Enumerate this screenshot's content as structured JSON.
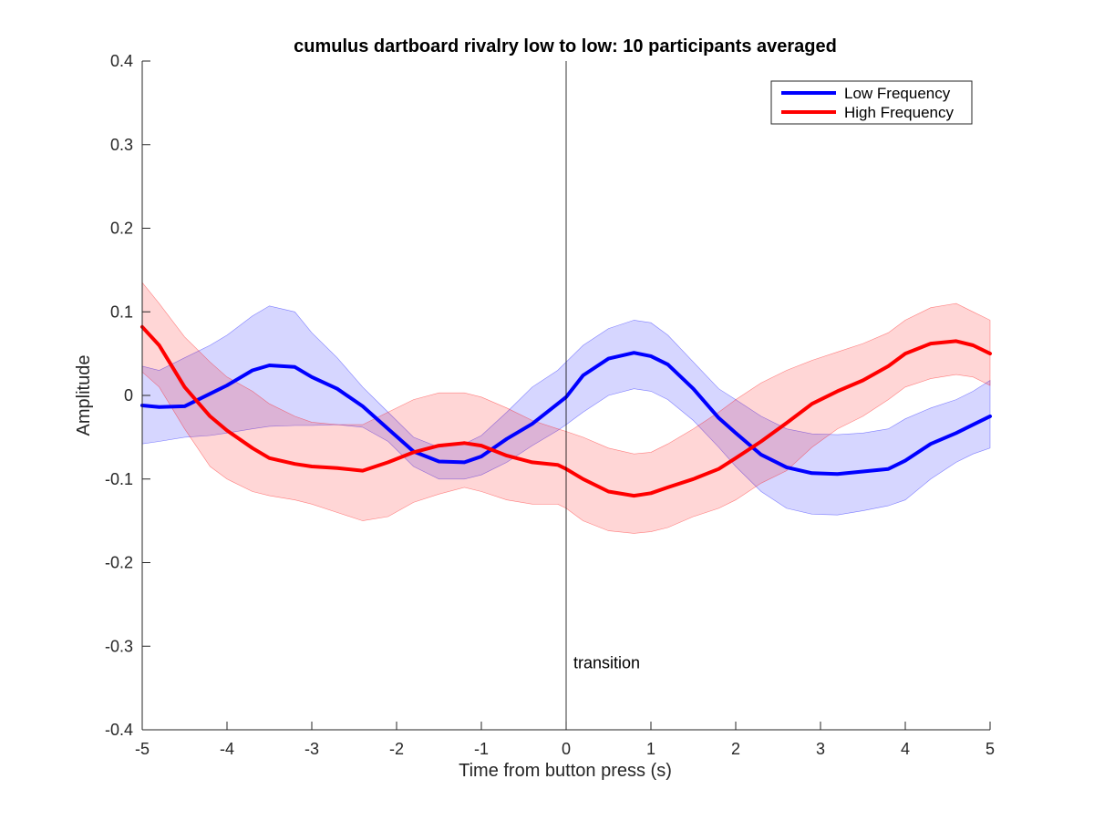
{
  "chart_data": {
    "type": "line",
    "title": "cumulus dartboard rivalry low to low: 10 participants averaged",
    "xlabel": "Time from button press (s)",
    "ylabel": "Amplitude",
    "xlim": [
      -5,
      5
    ],
    "ylim": [
      -0.4,
      0.4
    ],
    "xticks": [
      -5,
      -4,
      -3,
      -2,
      -1,
      0,
      1,
      2,
      3,
      4,
      5
    ],
    "yticks": [
      -0.4,
      -0.3,
      -0.2,
      -0.1,
      0,
      0.1,
      0.2,
      0.3,
      0.4
    ],
    "xtick_labels": [
      "-5",
      "-4",
      "-3",
      "-2",
      "-1",
      "0",
      "1",
      "2",
      "3",
      "4",
      "5"
    ],
    "ytick_labels": [
      "-0.4",
      "-0.3",
      "-0.2",
      "-0.1",
      "0",
      "0.1",
      "0.2",
      "0.3",
      "0.4"
    ],
    "grid": false,
    "legend_position": "top-right",
    "annotation": {
      "text": "transition",
      "x": 0,
      "y": -0.32
    },
    "vertical_line_x": 0,
    "series": [
      {
        "name": "Low Frequency",
        "color": "#0000ff",
        "x": [
          -5,
          -4.8,
          -4.5,
          -4.2,
          -4,
          -3.7,
          -3.5,
          -3.2,
          -3,
          -2.7,
          -2.4,
          -2.1,
          -1.8,
          -1.5,
          -1.2,
          -1,
          -0.7,
          -0.4,
          -0.1,
          0,
          0.2,
          0.5,
          0.8,
          1,
          1.2,
          1.5,
          1.8,
          2,
          2.3,
          2.6,
          2.9,
          3.2,
          3.5,
          3.8,
          4,
          4.3,
          4.6,
          4.8,
          5
        ],
        "y": [
          -0.012,
          -0.014,
          -0.013,
          0.002,
          0.012,
          0.03,
          0.036,
          0.034,
          0.022,
          0.008,
          -0.013,
          -0.04,
          -0.067,
          -0.079,
          -0.08,
          -0.073,
          -0.052,
          -0.034,
          -0.01,
          -0.002,
          0.024,
          0.044,
          0.051,
          0.047,
          0.037,
          0.008,
          -0.027,
          -0.045,
          -0.071,
          -0.086,
          -0.093,
          -0.094,
          -0.091,
          -0.088,
          -0.078,
          -0.058,
          -0.045,
          -0.035,
          -0.025
        ],
        "upper": [
          0.035,
          0.03,
          0.045,
          0.06,
          0.072,
          0.095,
          0.107,
          0.1,
          0.075,
          0.045,
          0.01,
          -0.02,
          -0.05,
          -0.062,
          -0.058,
          -0.048,
          -0.02,
          0.01,
          0.03,
          0.04,
          0.06,
          0.08,
          0.09,
          0.087,
          0.072,
          0.04,
          0.008,
          -0.005,
          -0.025,
          -0.04,
          -0.046,
          -0.047,
          -0.045,
          -0.04,
          -0.028,
          -0.015,
          -0.005,
          0.005,
          0.018
        ],
        "lower": [
          -0.058,
          -0.055,
          -0.05,
          -0.048,
          -0.045,
          -0.04,
          -0.037,
          -0.036,
          -0.036,
          -0.035,
          -0.038,
          -0.055,
          -0.085,
          -0.1,
          -0.1,
          -0.095,
          -0.08,
          -0.06,
          -0.042,
          -0.035,
          -0.02,
          0.0,
          0.008,
          0.005,
          -0.005,
          -0.03,
          -0.062,
          -0.085,
          -0.115,
          -0.135,
          -0.142,
          -0.143,
          -0.138,
          -0.132,
          -0.125,
          -0.1,
          -0.08,
          -0.07,
          -0.063
        ]
      },
      {
        "name": "High Frequency",
        "color": "#ff0000",
        "x": [
          -5,
          -4.8,
          -4.5,
          -4.2,
          -4,
          -3.7,
          -3.5,
          -3.2,
          -3,
          -2.7,
          -2.4,
          -2.1,
          -1.8,
          -1.5,
          -1.2,
          -1,
          -0.7,
          -0.4,
          -0.1,
          0,
          0.2,
          0.5,
          0.8,
          1,
          1.2,
          1.5,
          1.8,
          2,
          2.3,
          2.6,
          2.9,
          3.2,
          3.5,
          3.8,
          4,
          4.3,
          4.6,
          4.8,
          5
        ],
        "y": [
          0.082,
          0.06,
          0.01,
          -0.025,
          -0.042,
          -0.063,
          -0.075,
          -0.082,
          -0.085,
          -0.087,
          -0.09,
          -0.08,
          -0.068,
          -0.06,
          -0.057,
          -0.06,
          -0.072,
          -0.08,
          -0.083,
          -0.088,
          -0.1,
          -0.115,
          -0.12,
          -0.117,
          -0.11,
          -0.1,
          -0.088,
          -0.075,
          -0.055,
          -0.033,
          -0.01,
          0.005,
          0.018,
          0.035,
          0.05,
          0.062,
          0.065,
          0.06,
          0.05
        ],
        "upper": [
          0.135,
          0.11,
          0.07,
          0.04,
          0.022,
          0.005,
          -0.01,
          -0.025,
          -0.032,
          -0.035,
          -0.035,
          -0.02,
          -0.005,
          0.003,
          0.003,
          -0.002,
          -0.015,
          -0.03,
          -0.04,
          -0.043,
          -0.05,
          -0.063,
          -0.07,
          -0.068,
          -0.058,
          -0.04,
          -0.02,
          -0.005,
          0.015,
          0.03,
          0.042,
          0.052,
          0.062,
          0.075,
          0.09,
          0.105,
          0.11,
          0.1,
          0.09
        ],
        "lower": [
          0.028,
          0.01,
          -0.04,
          -0.085,
          -0.1,
          -0.115,
          -0.12,
          -0.125,
          -0.13,
          -0.14,
          -0.15,
          -0.145,
          -0.128,
          -0.118,
          -0.11,
          -0.115,
          -0.125,
          -0.13,
          -0.13,
          -0.135,
          -0.15,
          -0.162,
          -0.165,
          -0.163,
          -0.158,
          -0.145,
          -0.135,
          -0.125,
          -0.105,
          -0.09,
          -0.062,
          -0.04,
          -0.025,
          -0.005,
          0.01,
          0.02,
          0.025,
          0.022,
          0.012
        ]
      }
    ]
  }
}
